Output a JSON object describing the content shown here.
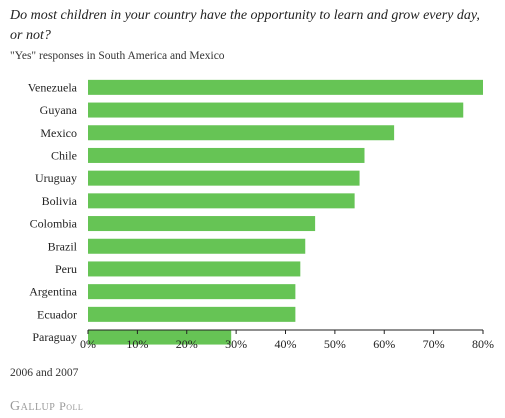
{
  "header": {
    "title": "Do most children in your country have the opportunity to learn and grow every day, or not?",
    "subtitle": "\"Yes\" responses in South America and Mexico"
  },
  "footer": {
    "note": "2006 and 2007",
    "brand_part1": "Gallup",
    "brand_part2": "Poll"
  },
  "colors": {
    "bar": "#66c455",
    "axis": "#222222",
    "text": "#222222"
  },
  "chart_data": {
    "type": "bar",
    "orientation": "horizontal",
    "categories": [
      "Venezuela",
      "Guyana",
      "Mexico",
      "Chile",
      "Uruguay",
      "Bolivia",
      "Colombia",
      "Brazil",
      "Peru",
      "Argentina",
      "Ecuador",
      "Paraguay"
    ],
    "values": [
      80,
      76,
      62,
      56,
      55,
      54,
      46,
      44,
      43,
      42,
      42,
      29
    ],
    "xlim": [
      0,
      80
    ],
    "xticks": [
      0,
      10,
      20,
      30,
      40,
      50,
      60,
      70,
      80
    ],
    "tick_labels": [
      "0%",
      "10%",
      "20%",
      "30%",
      "40%",
      "50%",
      "60%",
      "70%",
      "80%"
    ],
    "grid": false
  }
}
